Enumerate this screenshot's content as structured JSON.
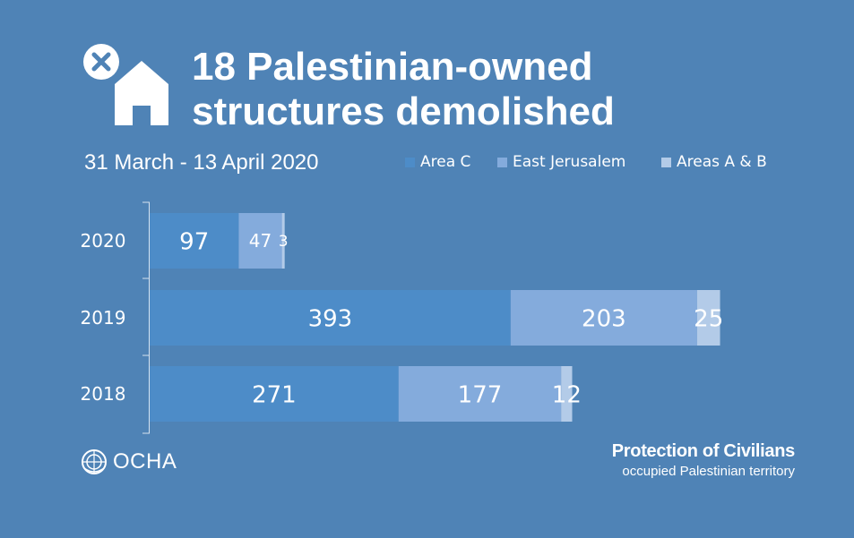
{
  "header": {
    "title_line1": "18 Palestinian-owned",
    "title_line2": "structures demolished",
    "subtitle": "31 March - 13 April 2020",
    "icons": [
      "close-circle-icon",
      "house-icon"
    ]
  },
  "legend": {
    "items": [
      {
        "label": "Area C",
        "color": "#4d8cc8"
      },
      {
        "label": "East Jerusalem",
        "color": "#84abdc"
      },
      {
        "label": "Areas A & B",
        "color": "#b3cbe8"
      }
    ]
  },
  "chart_data": {
    "type": "bar",
    "orientation": "horizontal",
    "stacked": true,
    "categories": [
      "2020",
      "2019",
      "2018"
    ],
    "series": [
      {
        "name": "Area C",
        "values": [
          97,
          393,
          271
        ],
        "color": "#4d8cc8"
      },
      {
        "name": "East Jerusalem",
        "values": [
          47,
          203,
          177
        ],
        "color": "#84abdc"
      },
      {
        "name": "Areas A & B",
        "values": [
          3,
          25,
          12
        ],
        "color": "#b3cbe8"
      }
    ],
    "data_labels": true,
    "legend_position": "top-right",
    "grid": false
  },
  "footer": {
    "org": "OCHA",
    "org_icon": "un-emblem-icon",
    "program_line1": "Protection of Civilians",
    "program_line2": "occupied Palestinian territory"
  }
}
